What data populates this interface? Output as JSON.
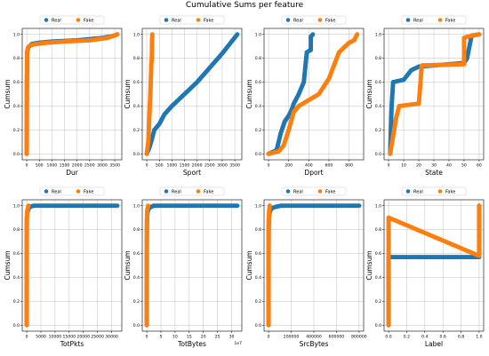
{
  "figure": {
    "title": "Cumulative Sums per feature"
  },
  "colors": {
    "real": "#1f77b4",
    "fake": "#ff7f0e",
    "grid": "#b0b0b0"
  },
  "chart_data": [
    {
      "type": "scatter",
      "xlabel": "Dur",
      "ylabel": "Cumsum",
      "legend": "top",
      "grid": true,
      "xlim": [
        -180,
        3780
      ],
      "ylim": [
        -0.05,
        1.05
      ],
      "xticks": [
        0,
        500,
        1000,
        1500,
        2000,
        2500,
        3000,
        3500
      ],
      "yticks": [
        0.0,
        0.2,
        0.4,
        0.6,
        0.8,
        1.0
      ],
      "offset_label": "",
      "series": [
        {
          "name": "Real",
          "points": [
            [
              0,
              0.0
            ],
            [
              3,
              0.3
            ],
            [
              6,
              0.6
            ],
            [
              15,
              0.85
            ],
            [
              60,
              0.89
            ],
            [
              200,
              0.92
            ],
            [
              500,
              0.93
            ],
            [
              1000,
              0.94
            ],
            [
              2000,
              0.95
            ],
            [
              3000,
              0.97
            ],
            [
              3500,
              0.99
            ],
            [
              3600,
              1.0
            ]
          ]
        },
        {
          "name": "Fake",
          "points": [
            [
              0,
              0.0
            ],
            [
              2,
              0.3
            ],
            [
              5,
              0.6
            ],
            [
              12,
              0.85
            ],
            [
              50,
              0.89
            ],
            [
              150,
              0.91
            ],
            [
              400,
              0.92
            ],
            [
              800,
              0.93
            ],
            [
              1500,
              0.94
            ],
            [
              2500,
              0.95
            ],
            [
              3200,
              0.97
            ],
            [
              3600,
              1.0
            ]
          ]
        }
      ]
    },
    {
      "type": "scatter",
      "xlabel": "Sport",
      "ylabel": "Cumsum",
      "legend": "top",
      "grid": true,
      "xlim": [
        -180,
        3780
      ],
      "ylim": [
        -0.05,
        1.05
      ],
      "xticks": [
        0,
        500,
        1000,
        1500,
        2000,
        2500,
        3000,
        3500
      ],
      "yticks": [
        0.0,
        0.2,
        0.4,
        0.6,
        0.8,
        1.0
      ],
      "offset_label": "",
      "series": [
        {
          "name": "Real",
          "points": [
            [
              0,
              0.0
            ],
            [
              100,
              0.05
            ],
            [
              200,
              0.12
            ],
            [
              300,
              0.2
            ],
            [
              500,
              0.25
            ],
            [
              700,
              0.33
            ],
            [
              1000,
              0.4
            ],
            [
              1500,
              0.5
            ],
            [
              2000,
              0.6
            ],
            [
              2500,
              0.72
            ],
            [
              3000,
              0.84
            ],
            [
              3600,
              1.0
            ]
          ]
        },
        {
          "name": "Fake",
          "points": [
            [
              0,
              0.0
            ],
            [
              60,
              0.1
            ],
            [
              100,
              0.3
            ],
            [
              150,
              0.55
            ],
            [
              180,
              0.75
            ],
            [
              200,
              0.8
            ],
            [
              210,
              0.95
            ],
            [
              220,
              1.0
            ]
          ]
        }
      ]
    },
    {
      "type": "scatter",
      "xlabel": "Dport",
      "ylabel": "Cumsum",
      "legend": "top",
      "grid": true,
      "xlim": [
        -45,
        945
      ],
      "ylim": [
        -0.05,
        1.05
      ],
      "xticks": [
        0,
        200,
        400,
        600,
        800
      ],
      "yticks": [
        0.0,
        0.2,
        0.4,
        0.6,
        0.8,
        1.0
      ],
      "offset_label": "",
      "series": [
        {
          "name": "Real",
          "points": [
            [
              0,
              0.0
            ],
            [
              80,
              0.03
            ],
            [
              100,
              0.1
            ],
            [
              120,
              0.17
            ],
            [
              160,
              0.27
            ],
            [
              200,
              0.32
            ],
            [
              230,
              0.37
            ],
            [
              250,
              0.42
            ],
            [
              300,
              0.5
            ],
            [
              350,
              0.6
            ],
            [
              380,
              0.85
            ],
            [
              420,
              0.87
            ],
            [
              420,
              0.98
            ],
            [
              440,
              1.0
            ]
          ]
        },
        {
          "name": "Fake",
          "points": [
            [
              0,
              0.0
            ],
            [
              100,
              0.02
            ],
            [
              150,
              0.07
            ],
            [
              200,
              0.2
            ],
            [
              250,
              0.35
            ],
            [
              300,
              0.4
            ],
            [
              400,
              0.45
            ],
            [
              500,
              0.5
            ],
            [
              600,
              0.63
            ],
            [
              700,
              0.85
            ],
            [
              800,
              0.93
            ],
            [
              850,
              0.95
            ],
            [
              880,
              1.0
            ]
          ]
        }
      ]
    },
    {
      "type": "scatter",
      "xlabel": "State",
      "ylabel": "Cumsum",
      "legend": "top",
      "grid": true,
      "xlim": [
        -3,
        63
      ],
      "ylim": [
        -0.05,
        1.05
      ],
      "xticks": [
        0,
        10,
        20,
        30,
        40,
        50,
        60
      ],
      "yticks": [
        0.0,
        0.2,
        0.4,
        0.6,
        0.8,
        1.0
      ],
      "offset_label": "",
      "series": [
        {
          "name": "Real",
          "points": [
            [
              1,
              0.0
            ],
            [
              2,
              0.4
            ],
            [
              3,
              0.6
            ],
            [
              10,
              0.62
            ],
            [
              15,
              0.7
            ],
            [
              20,
              0.73
            ],
            [
              30,
              0.74
            ],
            [
              40,
              0.75
            ],
            [
              50,
              0.76
            ],
            [
              52,
              0.8
            ],
            [
              55,
              0.99
            ],
            [
              60,
              1.0
            ]
          ]
        },
        {
          "name": "Fake",
          "points": [
            [
              1,
              0.0
            ],
            [
              5,
              0.3
            ],
            [
              7,
              0.4
            ],
            [
              20,
              0.42
            ],
            [
              22,
              0.74
            ],
            [
              50,
              0.75
            ],
            [
              50,
              0.97
            ],
            [
              52,
              0.98
            ],
            [
              60,
              1.0
            ]
          ]
        }
      ]
    },
    {
      "type": "scatter",
      "xlabel": "TotPkts",
      "ylabel": "Cumsum",
      "legend": "top",
      "grid": true,
      "xlim": [
        -1600,
        33600
      ],
      "ylim": [
        -0.05,
        1.05
      ],
      "xticks": [
        0,
        5000,
        10000,
        15000,
        20000,
        25000,
        30000
      ],
      "yticks": [
        0.0,
        0.2,
        0.4,
        0.6,
        0.8,
        1.0
      ],
      "offset_label": "",
      "series": [
        {
          "name": "Real",
          "points": [
            [
              0,
              0.0
            ],
            [
              5,
              0.5
            ],
            [
              10,
              0.8
            ],
            [
              40,
              0.9
            ],
            [
              200,
              0.95
            ],
            [
              600,
              0.97
            ],
            [
              1000,
              0.99
            ],
            [
              2500,
              1.0
            ],
            [
              3300,
              1.0
            ],
            [
              32000,
              1.0
            ]
          ]
        },
        {
          "name": "Fake",
          "points": [
            [
              0,
              0.0
            ],
            [
              5,
              0.6
            ],
            [
              10,
              0.85
            ],
            [
              50,
              0.9
            ],
            [
              150,
              0.95
            ],
            [
              300,
              0.97
            ],
            [
              600,
              1.0
            ]
          ]
        }
      ]
    },
    {
      "type": "scatter",
      "xlabel": "TotBytes",
      "ylabel": "Cumsum",
      "legend": "top",
      "grid": true,
      "xlim": [
        -1.6,
        33.6
      ],
      "ylim": [
        -0.05,
        1.05
      ],
      "xticks": [
        0,
        5,
        10,
        15,
        20,
        25,
        30
      ],
      "yticks": [
        0.0,
        0.2,
        0.4,
        0.6,
        0.8,
        1.0
      ],
      "offset_label": "1e7",
      "series": [
        {
          "name": "Real",
          "points": [
            [
              0,
              0.0
            ],
            [
              0.01,
              0.5
            ],
            [
              0.05,
              0.8
            ],
            [
              0.1,
              0.9
            ],
            [
              0.3,
              0.95
            ],
            [
              0.8,
              0.98
            ],
            [
              1.5,
              0.99
            ],
            [
              2.5,
              1.0
            ],
            [
              32,
              1.0
            ]
          ]
        },
        {
          "name": "Fake",
          "points": [
            [
              0,
              0.0
            ],
            [
              0.01,
              0.6
            ],
            [
              0.05,
              0.85
            ],
            [
              0.1,
              0.93
            ],
            [
              0.2,
              0.97
            ],
            [
              0.5,
              1.0
            ]
          ]
        }
      ]
    },
    {
      "type": "scatter",
      "xlabel": "SrcBytes",
      "ylabel": "Cumsum",
      "legend": "top",
      "grid": true,
      "xlim": [
        -40000,
        840000
      ],
      "ylim": [
        -0.05,
        1.05
      ],
      "xticks": [
        0,
        200000,
        400000,
        600000,
        800000
      ],
      "yticks": [
        0.0,
        0.2,
        0.4,
        0.6,
        0.8,
        1.0
      ],
      "offset_label": "",
      "series": [
        {
          "name": "Real",
          "points": [
            [
              0,
              0.0
            ],
            [
              200,
              0.5
            ],
            [
              1000,
              0.8
            ],
            [
              3000,
              0.9
            ],
            [
              10000,
              0.95
            ],
            [
              30000,
              0.98
            ],
            [
              60000,
              0.99
            ],
            [
              110000,
              1.0
            ],
            [
              150000,
              1.0
            ],
            [
              800000,
              1.0
            ]
          ]
        },
        {
          "name": "Fake",
          "points": [
            [
              0,
              0.0
            ],
            [
              200,
              0.6
            ],
            [
              800,
              0.85
            ],
            [
              2000,
              0.9
            ],
            [
              5000,
              0.95
            ],
            [
              10000,
              1.0
            ]
          ]
        }
      ]
    },
    {
      "type": "scatter",
      "xlabel": "Label",
      "ylabel": "Cumsum",
      "legend": "top",
      "grid": true,
      "xlim": [
        -0.05,
        1.05
      ],
      "ylim": [
        -0.05,
        1.05
      ],
      "xticks": [
        0.0,
        0.2,
        0.4,
        0.6,
        0.8,
        1.0
      ],
      "yticks": [
        0.0,
        0.2,
        0.4,
        0.6,
        0.8,
        1.0
      ],
      "offset_label": "",
      "series": [
        {
          "name": "Real",
          "points": [
            [
              0,
              0.0
            ],
            [
              0,
              0.57
            ],
            [
              1,
              0.57
            ],
            [
              1,
              1.0
            ]
          ]
        },
        {
          "name": "Fake",
          "points": [
            [
              0,
              0.0
            ],
            [
              0,
              0.9
            ],
            [
              1,
              0.58
            ],
            [
              1,
              1.0
            ]
          ]
        }
      ]
    }
  ]
}
